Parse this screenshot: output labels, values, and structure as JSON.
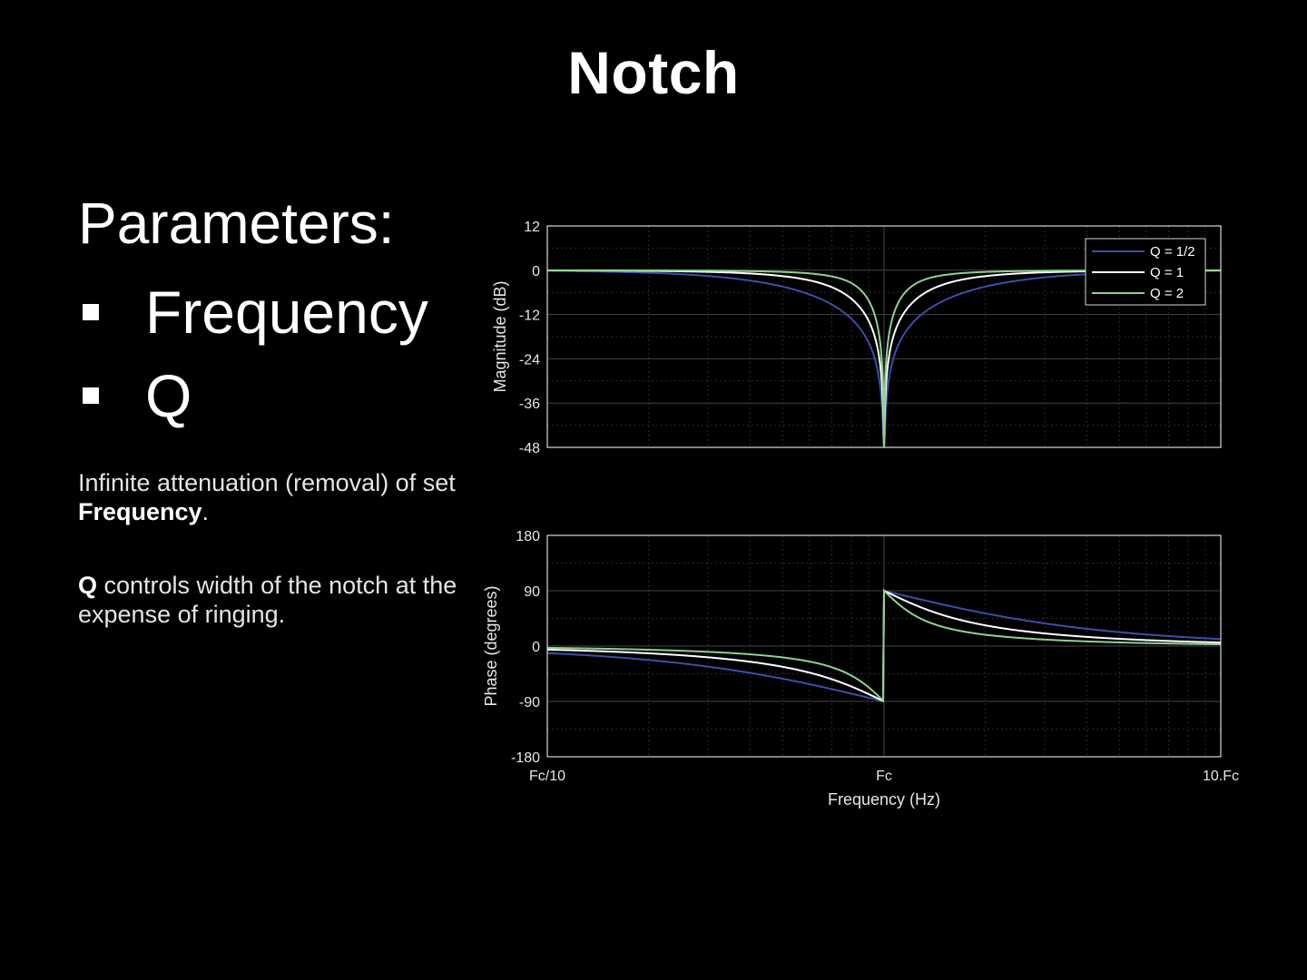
{
  "slide": {
    "title": "Notch",
    "parameters_heading": "Parameters:",
    "parameters": [
      "Frequency",
      "Q"
    ],
    "desc1_text": "Infinite attenuation (removal) of set ",
    "desc1_bold": "Frequency",
    "desc1_end": ".",
    "desc2_bold": "Q",
    "desc2_text": " controls width of the notch at the expense of ringing."
  },
  "chart_data": [
    {
      "type": "line",
      "panel": "magnitude",
      "x_scale": "log",
      "x_range_relative_to_Fc": [
        0.1,
        10
      ],
      "xtick_labels": [
        "Fc/10",
        "Fc",
        "10.Fc"
      ],
      "ylabel": "Magnitude (dB)",
      "ylim": [
        -48,
        12
      ],
      "yticks": [
        12,
        0,
        -12,
        -24,
        -36,
        -48
      ],
      "grid": true,
      "legend_placement": "top-right",
      "series": [
        {
          "name": "Q = 1/2",
          "color": "#3b4fa8",
          "Q": 0.5
        },
        {
          "name": "Q = 1",
          "color": "#ffffff",
          "Q": 1
        },
        {
          "name": "Q = 2",
          "color": "#8fd18f",
          "Q": 2
        }
      ]
    },
    {
      "type": "line",
      "panel": "phase",
      "x_scale": "log",
      "x_range_relative_to_Fc": [
        0.1,
        10
      ],
      "xtick_labels": [
        "Fc/10",
        "Fc",
        "10.Fc"
      ],
      "xlabel": "Frequency (Hz)",
      "ylabel": "Phase (degrees)",
      "ylim": [
        -180,
        180
      ],
      "yticks": [
        180,
        90,
        0,
        -90,
        -180
      ],
      "grid": true,
      "series": [
        {
          "name": "Q = 1/2",
          "color": "#3b4fa8",
          "Q": 0.5
        },
        {
          "name": "Q = 1",
          "color": "#ffffff",
          "Q": 1
        },
        {
          "name": "Q = 2",
          "color": "#8fd18f",
          "Q": 2
        }
      ]
    }
  ]
}
